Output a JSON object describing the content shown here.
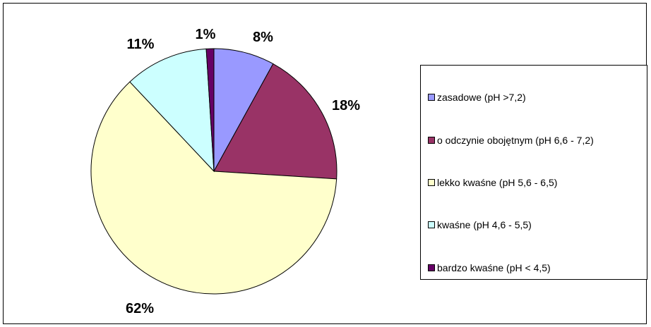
{
  "chart_data": {
    "type": "pie",
    "title": "",
    "categories": [
      "zasadowe (pH >7,2)",
      "o odczynie obojętnym (pH 6,6 - 7,2)",
      "lekko kwaśne (pH 5,6 - 6,5)",
      "kwaśne (pH 4,6 - 5,5)",
      "bardzo kwaśne (pH < 4,5)"
    ],
    "values": [
      8,
      18,
      62,
      11,
      1
    ],
    "value_labels": [
      "8%",
      "18%",
      "62%",
      "11%",
      "1%"
    ],
    "colors": [
      "#9999ff",
      "#993366",
      "#ffffcc",
      "#ccffff",
      "#660066"
    ],
    "legend_position": "right"
  }
}
